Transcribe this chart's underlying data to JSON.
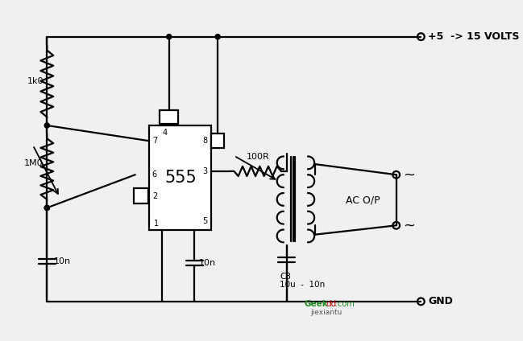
{
  "bg_color": "#f0f0f0",
  "line_color": "#000000",
  "vcc_label": "+5  -> 15 VOLTS",
  "gnd_label": "GND",
  "ac_op_label": "AC O/P",
  "r1_label": "1k0",
  "r2_label": "1M0",
  "r3_label": "100R",
  "c1_label": "10n",
  "c2_label": "10n",
  "c3_label_1": "C3",
  "c3_label_2": "10u  -  10n",
  "ic_label": "555",
  "tilde": "~"
}
